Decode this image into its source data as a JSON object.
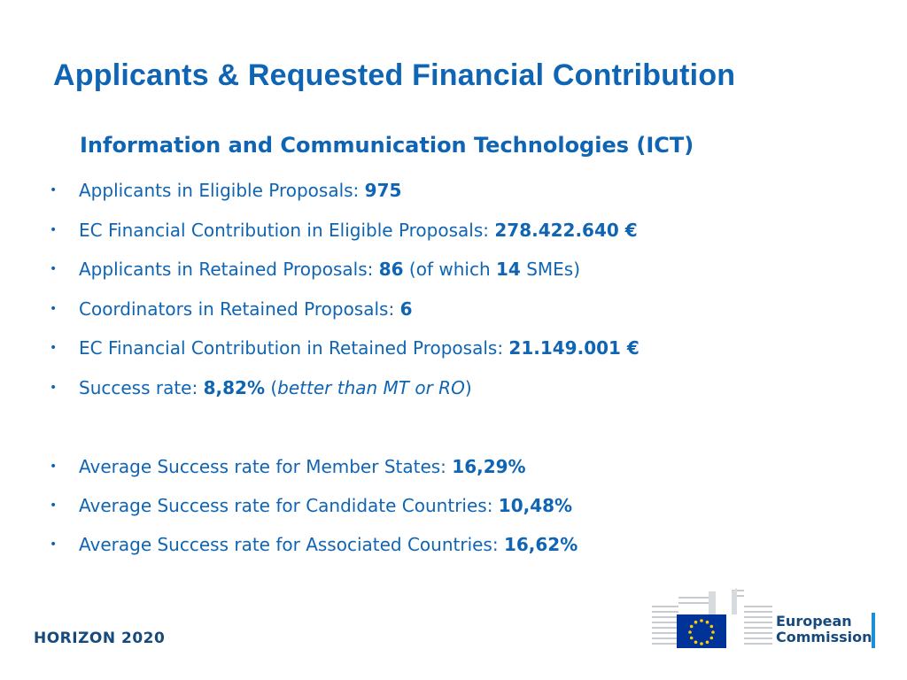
{
  "slide": {
    "title": "Applicants & Requested Financial Contribution",
    "subtitle": "Information and Communication Technologies (ICT)"
  },
  "bullets": [
    {
      "label": "Applicants in Eligible Proposals: ",
      "value": "975"
    },
    {
      "label": "EC Financial Contribution in Eligible Proposals: ",
      "value": "278.422.640 €"
    },
    {
      "label": "Applicants in Retained Proposals: ",
      "value": "86",
      "extra_pre": " (of which ",
      "extra_value": "14",
      "extra_post": " SMEs)"
    },
    {
      "label": "Coordinators in Retained Proposals: ",
      "value": "6"
    },
    {
      "label": "EC Financial Contribution in Retained Proposals: ",
      "value": "21.149.001 €"
    },
    {
      "label": "Success rate: ",
      "value": "8,82%",
      "note_pre": " (",
      "note_italic": "better than MT or RO",
      "note_post": ")"
    },
    {
      "label": "Average Success rate for Member States: ",
      "value": "16,29%"
    },
    {
      "label": "Average Success rate for Candidate Countries: ",
      "value": "10,48%"
    },
    {
      "label": "Average Success rate for Associated Countries: ",
      "value": "16,62%"
    }
  ],
  "footer": {
    "program": "HORIZON 2020",
    "logo_line1": "European",
    "logo_line2": "Commission"
  },
  "colors": {
    "primary_blue": "#0f65b3",
    "dark_blue": "#164a7c",
    "eu_flag_blue": "#003399",
    "eu_star_yellow": "#ffcc00"
  }
}
